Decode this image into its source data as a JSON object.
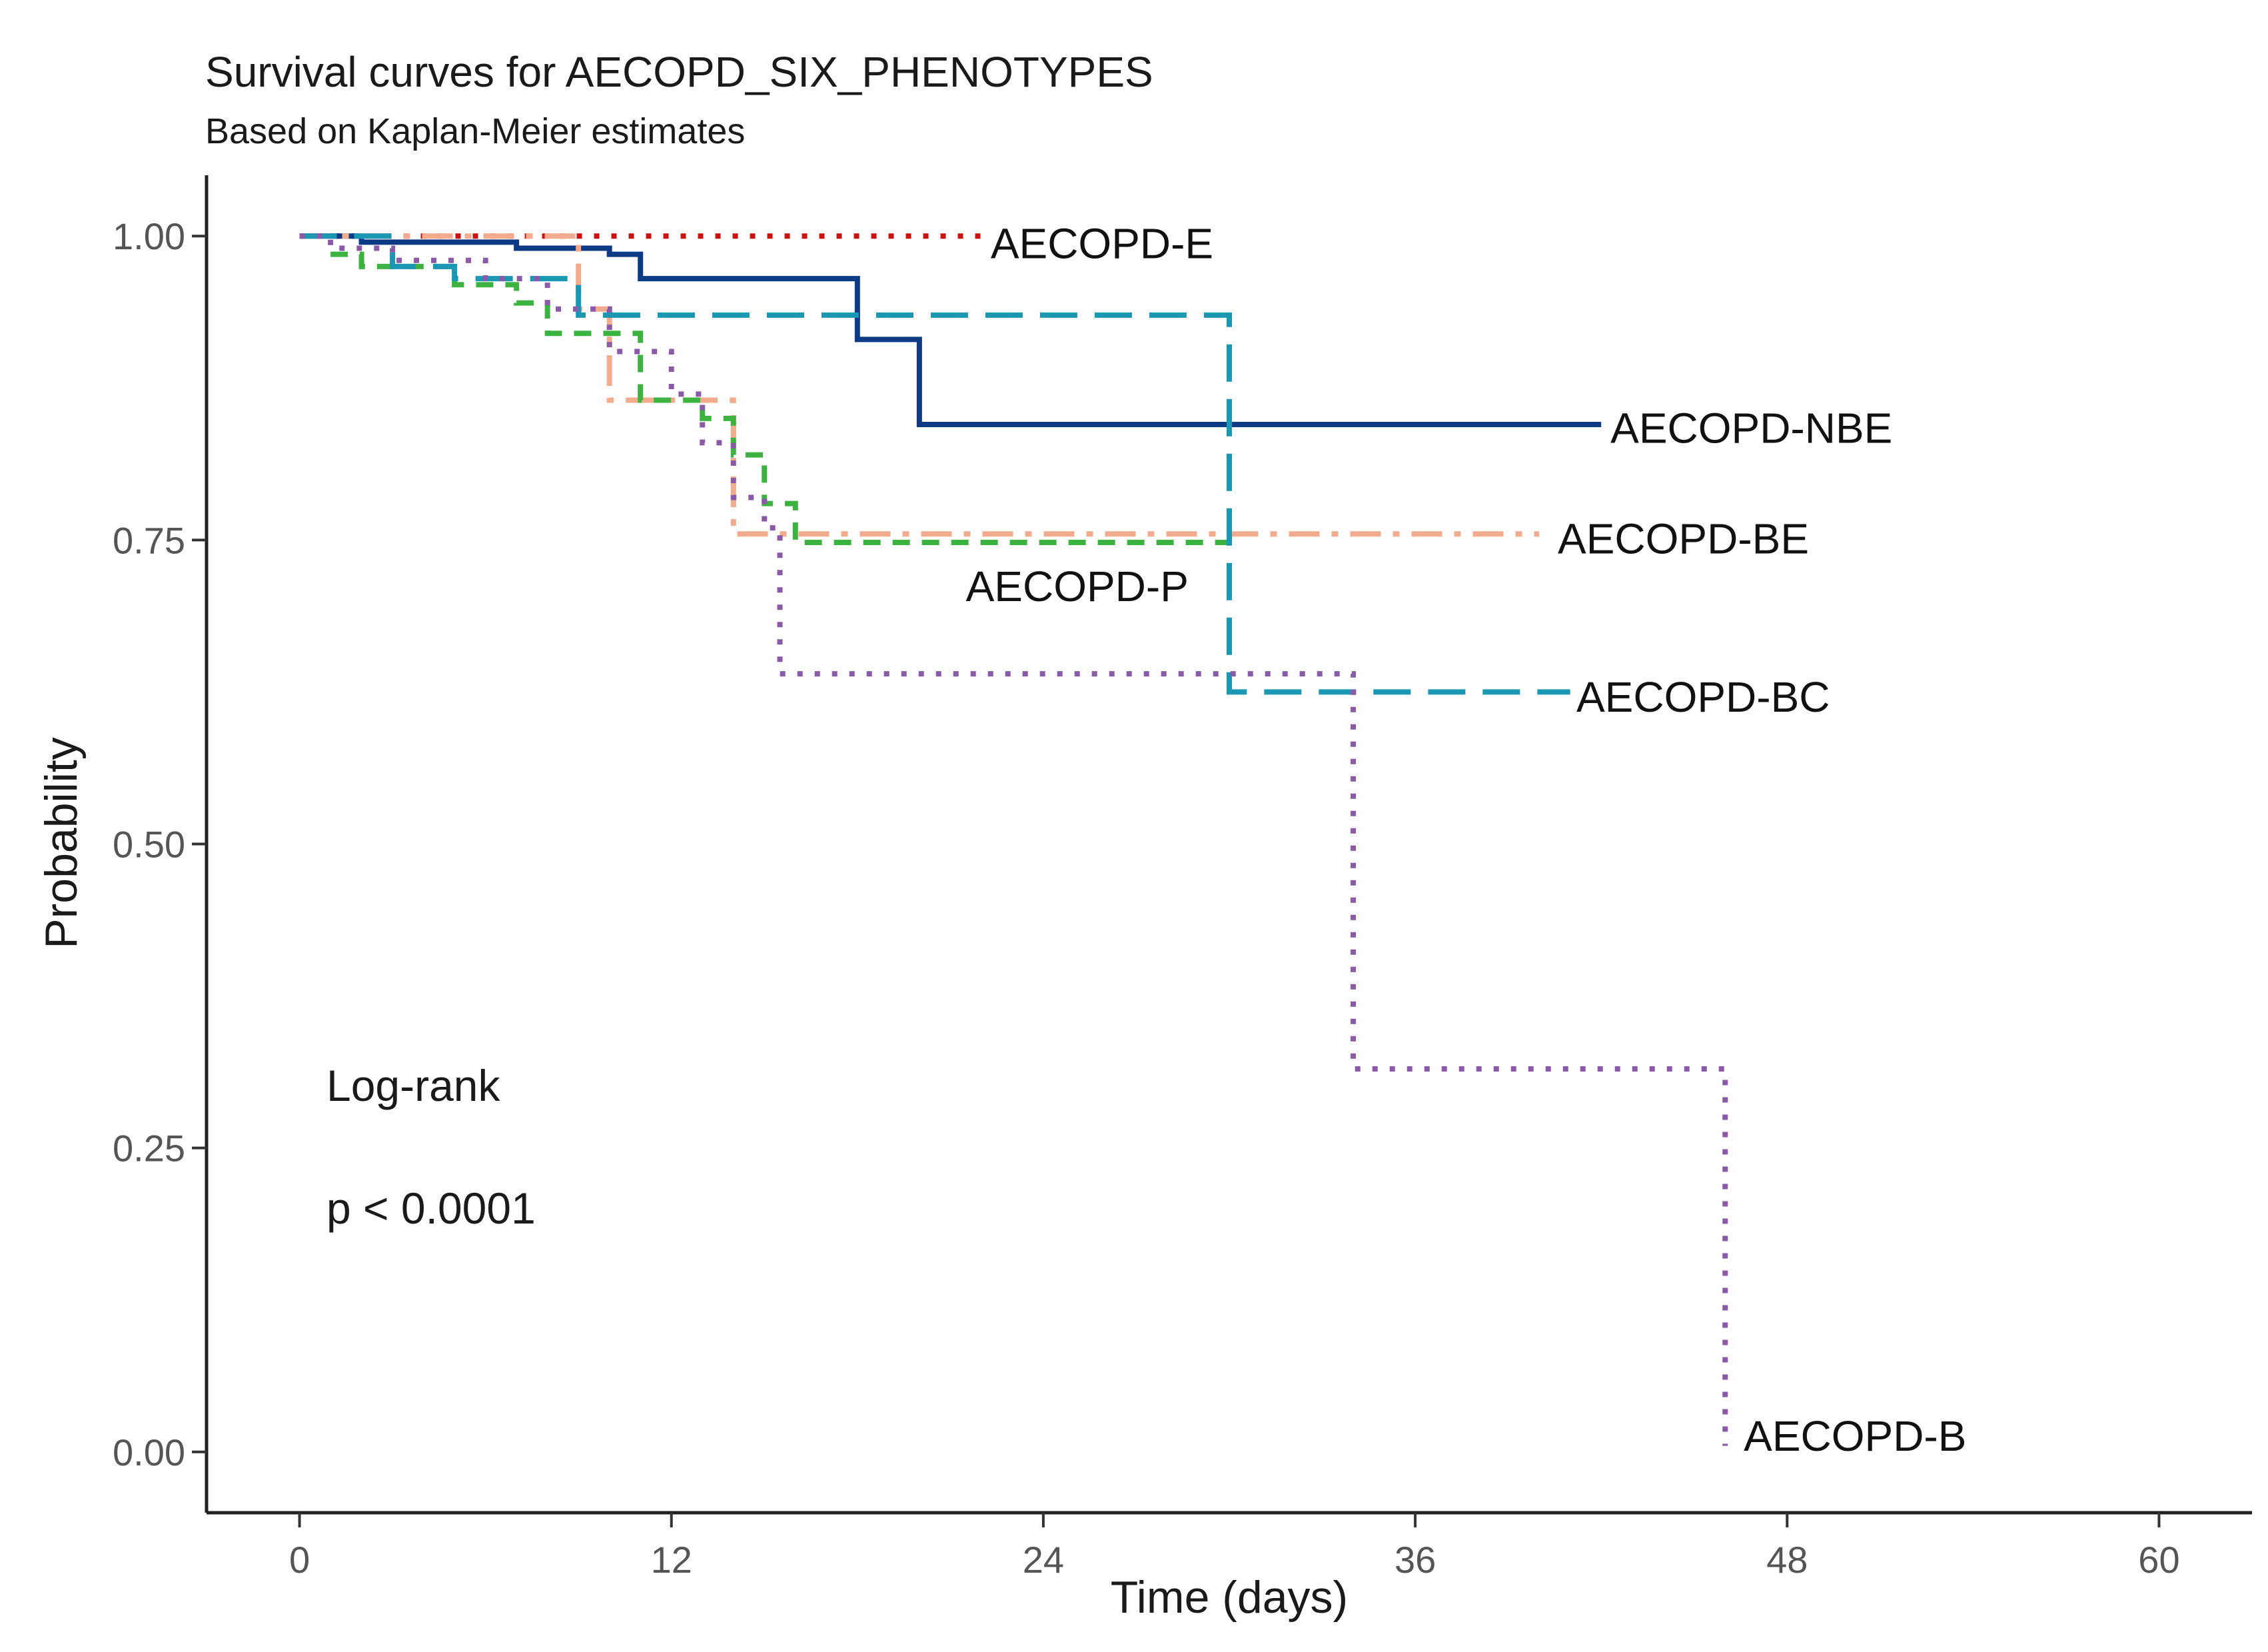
{
  "chart_data": {
    "type": "line",
    "title": "Survival curves for AECOPD_SIX_PHENOTYPES",
    "subtitle": "Based on Kaplan-Meier estimates",
    "xlabel": "Time (days)",
    "ylabel": "Probability",
    "xlim": [
      -3,
      63
    ],
    "ylim": [
      -0.05,
      1.05
    ],
    "xticks": [
      0,
      12,
      24,
      36,
      48,
      60
    ],
    "yticks": [
      0.0,
      0.25,
      0.5,
      0.75,
      1.0
    ],
    "xtick_labels": [
      "0",
      "12",
      "24",
      "36",
      "48",
      "60"
    ],
    "ytick_labels": [
      "0.00",
      "0.25",
      "0.50",
      "0.75",
      "1.00"
    ],
    "grid": false,
    "annotations": {
      "test": "Log-rank",
      "pvalue": "p < 0.0001"
    },
    "series": [
      {
        "name": "AECOPD-E",
        "label": "AECOPD-E",
        "color": "#cc1111",
        "dash": "dotted",
        "steps": [
          [
            0,
            1.0
          ],
          [
            22,
            1.0
          ]
        ]
      },
      {
        "name": "AECOPD-NBE",
        "label": "AECOPD-NBE",
        "color": "#0d3a85",
        "dash": "solid",
        "steps": [
          [
            0,
            1.0
          ],
          [
            2,
            0.995
          ],
          [
            7,
            0.99
          ],
          [
            10,
            0.985
          ],
          [
            11,
            0.965
          ],
          [
            18,
            0.915
          ],
          [
            20,
            0.845
          ],
          [
            42,
            0.845
          ]
        ]
      },
      {
        "name": "AECOPD-BE",
        "label": "AECOPD-BE",
        "color": "#f2ab8c",
        "dash": "dashdot",
        "steps": [
          [
            0,
            1.0
          ],
          [
            9,
            0.94
          ],
          [
            10,
            0.865
          ],
          [
            14,
            0.755
          ],
          [
            40,
            0.755
          ]
        ]
      },
      {
        "name": "AECOPD-P",
        "label": "AECOPD-P",
        "color": "#3cb340",
        "dash": "dashed",
        "steps": [
          [
            1,
            0.985
          ],
          [
            2,
            0.975
          ],
          [
            5,
            0.96
          ],
          [
            7,
            0.945
          ],
          [
            8,
            0.92
          ],
          [
            11,
            0.865
          ],
          [
            13,
            0.85
          ],
          [
            14,
            0.82
          ],
          [
            15,
            0.78
          ],
          [
            16,
            0.748
          ],
          [
            30,
            0.748
          ]
        ]
      },
      {
        "name": "AECOPD-BC",
        "label": "AECOPD-BC",
        "color": "#1a97b3",
        "dash": "longdash",
        "steps": [
          [
            0,
            1.0
          ],
          [
            3,
            0.975
          ],
          [
            5,
            0.965
          ],
          [
            9,
            0.935
          ],
          [
            30,
            0.625
          ],
          [
            41,
            0.625
          ]
        ]
      },
      {
        "name": "AECOPD-B",
        "label": "AECOPD-B",
        "color": "#8a5aa8",
        "dash": "dotted",
        "steps": [
          [
            0,
            1.0
          ],
          [
            1,
            0.99
          ],
          [
            3,
            0.98
          ],
          [
            6,
            0.965
          ],
          [
            8,
            0.94
          ],
          [
            10,
            0.905
          ],
          [
            12,
            0.87
          ],
          [
            13,
            0.83
          ],
          [
            14,
            0.785
          ],
          [
            15,
            0.76
          ],
          [
            15.5,
            0.64
          ],
          [
            34,
            0.315
          ],
          [
            46,
            0.005
          ]
        ]
      }
    ],
    "label_positions_by_value": [
      {
        "series": "AECOPD-E",
        "x": 22.3,
        "y": 0.995
      },
      {
        "series": "AECOPD-NBE",
        "x": 42.3,
        "y": 0.843
      },
      {
        "series": "AECOPD-BE",
        "x": 40.6,
        "y": 0.752
      },
      {
        "series": "AECOPD-P",
        "x": 21.5,
        "y": 0.713
      },
      {
        "series": "AECOPD-BC",
        "x": 41.2,
        "y": 0.622
      },
      {
        "series": "AECOPD-B",
        "x": 46.6,
        "y": 0.014
      }
    ]
  }
}
